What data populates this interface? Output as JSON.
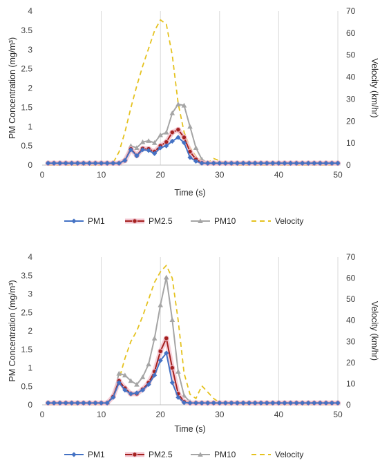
{
  "chart_data": [
    {
      "type": "line",
      "panel": "top",
      "xlabel": "Time (s)",
      "ylabel": "PM Concentration (mg/m³)",
      "y2label": "Velocity (km/hr)",
      "xlim": [
        0,
        50
      ],
      "ylim": [
        0,
        4
      ],
      "y2lim": [
        0,
        70
      ],
      "x_ticks": [
        "0",
        "10",
        "20",
        "30",
        "40",
        "50"
      ],
      "y_ticks": [
        "0",
        "0.5",
        "1",
        "1.5",
        "2",
        "2.5",
        "3",
        "3.5",
        "4"
      ],
      "y2_ticks": [
        "0",
        "10",
        "20",
        "30",
        "40",
        "50",
        "60",
        "70"
      ],
      "grid": "vertical",
      "legend_position": "bottom",
      "x": [
        1,
        2,
        3,
        4,
        5,
        6,
        7,
        8,
        9,
        10,
        11,
        12,
        13,
        14,
        15,
        16,
        17,
        18,
        19,
        20,
        21,
        22,
        23,
        24,
        25,
        26,
        27,
        28,
        29,
        30,
        31,
        32,
        33,
        34,
        35,
        36,
        37,
        38,
        39,
        40,
        41,
        42,
        43,
        44,
        45,
        46,
        47,
        48,
        49,
        50
      ],
      "series": [
        {
          "name": "PM1",
          "axis": "left",
          "color": "#4472C4",
          "marker": "diamond",
          "values": [
            0.05,
            0.05,
            0.05,
            0.05,
            0.05,
            0.05,
            0.05,
            0.05,
            0.05,
            0.05,
            0.05,
            0.05,
            0.05,
            0.12,
            0.4,
            0.24,
            0.4,
            0.38,
            0.3,
            0.45,
            0.5,
            0.62,
            0.72,
            0.58,
            0.2,
            0.1,
            0.05,
            0.05,
            0.05,
            0.05,
            0.05,
            0.05,
            0.05,
            0.05,
            0.05,
            0.05,
            0.05,
            0.05,
            0.05,
            0.05,
            0.05,
            0.05,
            0.05,
            0.05,
            0.05,
            0.05,
            0.05,
            0.05,
            0.05,
            0.05
          ]
        },
        {
          "name": "PM2.5",
          "axis": "left",
          "color": "#A5211F",
          "marker": "circle",
          "values": [
            0.05,
            0.05,
            0.05,
            0.05,
            0.05,
            0.05,
            0.05,
            0.05,
            0.05,
            0.05,
            0.05,
            0.05,
            0.05,
            0.12,
            0.42,
            0.25,
            0.43,
            0.42,
            0.35,
            0.5,
            0.6,
            0.85,
            0.92,
            0.72,
            0.35,
            0.15,
            0.06,
            0.05,
            0.05,
            0.05,
            0.05,
            0.05,
            0.05,
            0.05,
            0.05,
            0.05,
            0.05,
            0.05,
            0.05,
            0.05,
            0.05,
            0.05,
            0.05,
            0.05,
            0.05,
            0.05,
            0.05,
            0.05,
            0.05,
            0.05
          ]
        },
        {
          "name": "PM10",
          "axis": "left",
          "color": "#A5A5A5",
          "marker": "triangle",
          "values": [
            0.05,
            0.05,
            0.05,
            0.05,
            0.05,
            0.05,
            0.05,
            0.05,
            0.05,
            0.05,
            0.05,
            0.05,
            0.05,
            0.15,
            0.5,
            0.45,
            0.6,
            0.63,
            0.58,
            0.78,
            0.85,
            1.35,
            1.58,
            1.55,
            1.0,
            0.45,
            0.15,
            0.06,
            0.05,
            0.05,
            0.05,
            0.05,
            0.05,
            0.05,
            0.05,
            0.05,
            0.05,
            0.05,
            0.05,
            0.05,
            0.05,
            0.05,
            0.05,
            0.05,
            0.05,
            0.05,
            0.05,
            0.05,
            0.05,
            0.05
          ]
        },
        {
          "name": "Velocity",
          "axis": "right",
          "color": "#E5C21F",
          "marker": "none",
          "dash": true,
          "values": [
            0,
            0,
            0,
            0,
            0,
            0,
            0,
            0,
            0,
            0,
            0,
            1,
            6,
            15,
            26,
            36,
            45,
            53,
            61,
            66,
            64,
            50,
            28,
            15,
            8,
            4,
            2,
            1,
            3,
            2,
            1,
            0,
            0,
            0,
            0,
            0,
            0,
            0,
            0,
            0,
            0,
            0,
            0,
            0,
            0,
            0,
            0,
            0,
            0,
            0
          ]
        }
      ]
    },
    {
      "type": "line",
      "panel": "bottom",
      "xlabel": "Time (s)",
      "ylabel": "PM Concentration (mg/m³)",
      "y2label": "Velocity (km/hr)",
      "xlim": [
        0,
        50
      ],
      "ylim": [
        0,
        4
      ],
      "y2lim": [
        0,
        70
      ],
      "x_ticks": [
        "0",
        "10",
        "20",
        "30",
        "40",
        "50"
      ],
      "y_ticks": [
        "0",
        "0.5",
        "1",
        "1.5",
        "2",
        "2.5",
        "3",
        "3.5",
        "4"
      ],
      "y2_ticks": [
        "0",
        "10",
        "20",
        "30",
        "40",
        "50",
        "60",
        "70"
      ],
      "grid": "vertical",
      "legend_position": "bottom",
      "x": [
        1,
        2,
        3,
        4,
        5,
        6,
        7,
        8,
        9,
        10,
        11,
        12,
        13,
        14,
        15,
        16,
        17,
        18,
        19,
        20,
        21,
        22,
        23,
        24,
        25,
        26,
        27,
        28,
        29,
        30,
        31,
        32,
        33,
        34,
        35,
        36,
        37,
        38,
        39,
        40,
        41,
        42,
        43,
        44,
        45,
        46,
        47,
        48,
        49,
        50
      ],
      "series": [
        {
          "name": "PM1",
          "axis": "left",
          "color": "#4472C4",
          "marker": "diamond",
          "values": [
            0.05,
            0.05,
            0.05,
            0.05,
            0.05,
            0.05,
            0.05,
            0.05,
            0.05,
            0.05,
            0.05,
            0.2,
            0.6,
            0.4,
            0.3,
            0.32,
            0.4,
            0.55,
            0.8,
            1.2,
            1.4,
            0.6,
            0.2,
            0.06,
            0.05,
            0.05,
            0.05,
            0.05,
            0.05,
            0.05,
            0.05,
            0.05,
            0.05,
            0.05,
            0.05,
            0.05,
            0.05,
            0.05,
            0.05,
            0.05,
            0.05,
            0.05,
            0.05,
            0.05,
            0.05,
            0.05,
            0.05,
            0.05,
            0.05,
            0.05
          ]
        },
        {
          "name": "PM2.5",
          "axis": "left",
          "color": "#A5211F",
          "marker": "circle",
          "values": [
            0.05,
            0.05,
            0.05,
            0.05,
            0.05,
            0.05,
            0.05,
            0.05,
            0.05,
            0.05,
            0.05,
            0.22,
            0.65,
            0.45,
            0.3,
            0.3,
            0.42,
            0.6,
            0.9,
            1.45,
            1.8,
            1.0,
            0.3,
            0.08,
            0.05,
            0.05,
            0.05,
            0.05,
            0.05,
            0.05,
            0.05,
            0.05,
            0.05,
            0.05,
            0.05,
            0.05,
            0.05,
            0.05,
            0.05,
            0.05,
            0.05,
            0.05,
            0.05,
            0.05,
            0.05,
            0.05,
            0.05,
            0.05,
            0.05,
            0.05
          ]
        },
        {
          "name": "PM10",
          "axis": "left",
          "color": "#A5A5A5",
          "marker": "triangle",
          "values": [
            0.05,
            0.05,
            0.05,
            0.05,
            0.05,
            0.05,
            0.05,
            0.05,
            0.05,
            0.05,
            0.05,
            0.25,
            0.85,
            0.8,
            0.65,
            0.55,
            0.75,
            1.1,
            1.8,
            2.7,
            3.45,
            2.3,
            0.9,
            0.25,
            0.08,
            0.06,
            0.05,
            0.05,
            0.05,
            0.05,
            0.05,
            0.05,
            0.05,
            0.05,
            0.05,
            0.05,
            0.05,
            0.05,
            0.05,
            0.05,
            0.05,
            0.05,
            0.05,
            0.05,
            0.05,
            0.05,
            0.05,
            0.05,
            0.05,
            0.05
          ]
        },
        {
          "name": "Velocity",
          "axis": "right",
          "color": "#E5C21F",
          "marker": "none",
          "dash": true,
          "values": [
            0,
            0,
            0,
            0,
            0,
            0,
            0,
            0,
            0,
            0,
            0,
            4,
            12,
            22,
            30,
            35,
            42,
            50,
            58,
            63,
            66,
            60,
            40,
            15,
            5,
            3,
            9,
            6,
            3,
            1,
            0,
            0,
            0,
            0,
            0,
            0,
            0,
            0,
            0,
            0,
            0,
            0,
            0,
            0,
            0,
            0,
            0,
            0,
            0,
            0
          ]
        }
      ]
    }
  ]
}
